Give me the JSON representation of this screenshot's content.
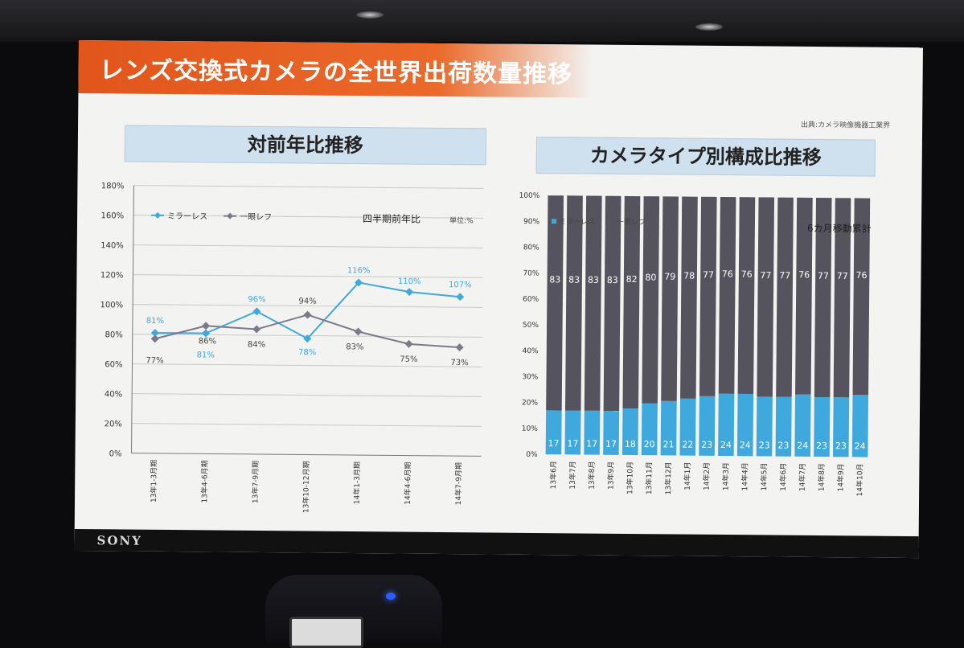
{
  "slide": {
    "title": "レンズ交換式カメラの全世界出荷数量推移",
    "source": "出典:カメラ映像機器工業界",
    "footer_logo": "SONY"
  },
  "colors": {
    "mirrorless": "#3fa9dd",
    "slr": "#7d7988",
    "slr_bar": "#55535d",
    "title_bar": "#e2551b",
    "panel_header": "#cfe0ee"
  },
  "chart_data": [
    {
      "type": "line",
      "panel_title": "対前年比推移",
      "subtitle": "四半期前年比",
      "unit": "単位:%",
      "categories": [
        "13年1-3月期",
        "13年4-6月期",
        "13年7-9月期",
        "13年10-12月期",
        "14年1-3月期",
        "14年4-6月期",
        "14年7-9月期"
      ],
      "series": [
        {
          "name": "ミラーレス",
          "values": [
            81,
            81,
            96,
            78,
            116,
            110,
            107
          ],
          "color": "#3fa9dd"
        },
        {
          "name": "一眼レフ",
          "values": [
            77,
            86,
            84,
            94,
            83,
            75,
            73
          ],
          "color": "#7d7988"
        }
      ],
      "ylim": [
        0,
        180
      ],
      "yticks": [
        "0%",
        "20%",
        "40%",
        "60%",
        "80%",
        "100%",
        "120%",
        "140%",
        "160%",
        "180%"
      ],
      "grid": true,
      "legend": "top-left"
    },
    {
      "type": "bar",
      "stacked": true,
      "panel_title": "カメラタイプ別構成比推移",
      "subtitle": "6カ月移動累計",
      "categories": [
        "13年6月",
        "13年7月",
        "13年8月",
        "13年9月",
        "13年10月",
        "13年11月",
        "13年12月",
        "14年1月",
        "14年2月",
        "14年3月",
        "14年4月",
        "14年5月",
        "14年6月",
        "14年7月",
        "14年8月",
        "14年9月",
        "14年10月"
      ],
      "series": [
        {
          "name": "ミラーレス",
          "values": [
            17,
            17,
            17,
            17,
            18,
            20,
            21,
            22,
            23,
            24,
            24,
            23,
            23,
            24,
            23,
            23,
            24
          ],
          "color": "#3fa9dd"
        },
        {
          "name": "一眼レフ",
          "values": [
            83,
            83,
            83,
            83,
            82,
            80,
            79,
            78,
            77,
            76,
            76,
            77,
            77,
            76,
            77,
            77,
            76
          ],
          "color": "#55535d"
        }
      ],
      "ylim": [
        0,
        100
      ],
      "yticks": [
        "0%",
        "10%",
        "20%",
        "30%",
        "40%",
        "50%",
        "60%",
        "70%",
        "80%",
        "90%",
        "100%"
      ],
      "grid": false,
      "legend": "top-left"
    }
  ]
}
